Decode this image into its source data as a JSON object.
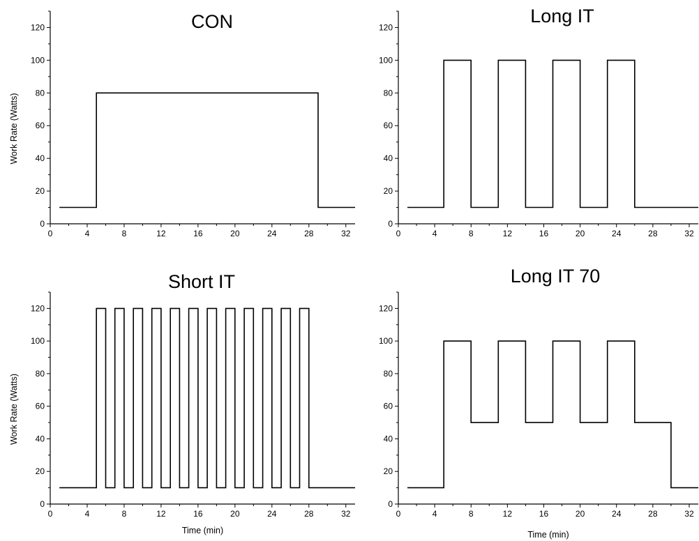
{
  "chart_data": [
    {
      "type": "line",
      "title": "CON",
      "xlabel": "",
      "ylabel": "Work Rate (Watts)",
      "xlim": [
        0,
        33
      ],
      "ylim": [
        0,
        130
      ],
      "xticks": [
        0,
        4,
        8,
        12,
        16,
        20,
        24,
        28,
        32
      ],
      "yticks": [
        0,
        20,
        40,
        60,
        80,
        100,
        120
      ],
      "series": [
        {
          "x": [
            1,
            5,
            5,
            29,
            29,
            33
          ],
          "y": [
            10,
            10,
            80,
            80,
            10,
            10
          ]
        }
      ]
    },
    {
      "type": "line",
      "title": "Long IT",
      "xlabel": "",
      "ylabel": "",
      "xlim": [
        0,
        33
      ],
      "ylim": [
        0,
        130
      ],
      "xticks": [
        0,
        4,
        8,
        12,
        16,
        20,
        24,
        28,
        32
      ],
      "yticks": [
        0,
        20,
        40,
        60,
        80,
        100,
        120
      ],
      "series": [
        {
          "x": [
            1,
            5,
            5,
            8,
            8,
            11,
            11,
            14,
            14,
            17,
            17,
            20,
            20,
            23,
            23,
            26,
            26,
            33
          ],
          "y": [
            10,
            10,
            100,
            100,
            10,
            10,
            100,
            100,
            10,
            10,
            100,
            100,
            10,
            10,
            100,
            100,
            10,
            10
          ]
        }
      ]
    },
    {
      "type": "line",
      "title": "Short IT",
      "xlabel": "Time (min)",
      "ylabel": "Work Rate (Watts)",
      "xlim": [
        0,
        33
      ],
      "ylim": [
        0,
        130
      ],
      "xticks": [
        0,
        4,
        8,
        12,
        16,
        20,
        24,
        28,
        32
      ],
      "yticks": [
        0,
        20,
        40,
        60,
        80,
        100,
        120
      ],
      "series": [
        {
          "x": [
            1,
            5,
            5,
            6,
            6,
            7,
            7,
            8,
            8,
            9,
            9,
            10,
            10,
            11,
            11,
            12,
            12,
            13,
            13,
            14,
            14,
            15,
            15,
            16,
            16,
            17,
            17,
            18,
            18,
            19,
            19,
            20,
            20,
            21,
            21,
            22,
            22,
            23,
            23,
            24,
            24,
            25,
            25,
            26,
            26,
            27,
            27,
            28,
            28,
            33
          ],
          "y": [
            10,
            10,
            120,
            120,
            10,
            10,
            120,
            120,
            10,
            10,
            120,
            120,
            10,
            10,
            120,
            120,
            10,
            10,
            120,
            120,
            10,
            10,
            120,
            120,
            10,
            10,
            120,
            120,
            10,
            10,
            120,
            120,
            10,
            10,
            120,
            120,
            10,
            10,
            120,
            120,
            10,
            10,
            120,
            120,
            10,
            10,
            120,
            120,
            10,
            10
          ]
        }
      ]
    },
    {
      "type": "line",
      "title": "Long IT 70",
      "xlabel": "Time (min)",
      "ylabel": "",
      "xlim": [
        0,
        33
      ],
      "ylim": [
        0,
        130
      ],
      "xticks": [
        0,
        4,
        8,
        12,
        16,
        20,
        24,
        28,
        32
      ],
      "yticks": [
        0,
        20,
        40,
        60,
        80,
        100,
        120
      ],
      "series": [
        {
          "x": [
            1,
            5,
            5,
            8,
            8,
            11,
            11,
            14,
            14,
            17,
            17,
            20,
            20,
            23,
            23,
            26,
            26,
            30,
            30,
            33
          ],
          "y": [
            10,
            10,
            100,
            100,
            50,
            50,
            100,
            100,
            50,
            50,
            100,
            100,
            50,
            50,
            100,
            100,
            50,
            50,
            10,
            10
          ]
        }
      ]
    }
  ]
}
